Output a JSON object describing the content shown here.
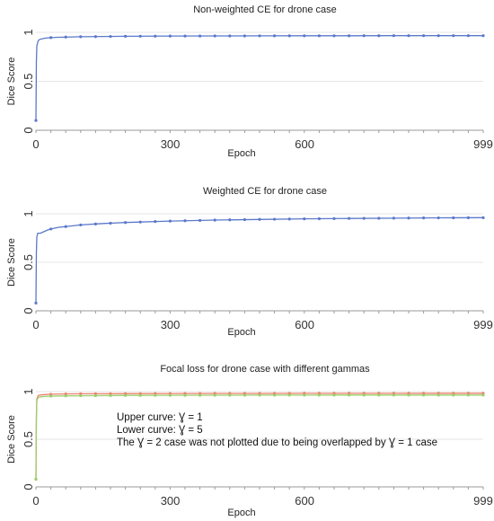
{
  "chart_data": [
    {
      "type": "line",
      "title": "Non-weighted CE for drone case",
      "xlabel": "Epoch",
      "ylabel": "Dice Score",
      "x_ticks": [
        "0",
        "300",
        "600",
        "999"
      ],
      "y_ticks": [
        "0",
        "0.5",
        "1"
      ],
      "xlim": [
        0,
        999
      ],
      "ylim": [
        0,
        1
      ],
      "grid": true,
      "colors": [
        "#5b78c9"
      ],
      "series": [
        {
          "x": [
            0,
            1,
            2,
            4,
            6,
            10,
            15,
            20,
            30,
            50,
            100,
            200,
            300,
            400,
            500,
            600,
            700,
            800,
            900,
            999
          ],
          "values": [
            0.1,
            0.7,
            0.86,
            0.9,
            0.92,
            0.93,
            0.935,
            0.94,
            0.945,
            0.95,
            0.955,
            0.96,
            0.962,
            0.963,
            0.964,
            0.965,
            0.965,
            0.966,
            0.966,
            0.966
          ]
        }
      ],
      "annotations": []
    },
    {
      "type": "line",
      "title": "Weighted CE for drone case",
      "xlabel": "Epoch",
      "ylabel": "Dice Score",
      "x_ticks": [
        "0",
        "300",
        "600",
        "999"
      ],
      "y_ticks": [
        "0",
        "0.5",
        "1"
      ],
      "xlim": [
        0,
        999
      ],
      "ylim": [
        0,
        1
      ],
      "grid": true,
      "colors": [
        "#5b78c9"
      ],
      "series": [
        {
          "x": [
            0,
            1,
            2,
            4,
            6,
            10,
            15,
            20,
            30,
            50,
            80,
            100,
            150,
            200,
            300,
            400,
            500,
            600,
            700,
            800,
            900,
            999
          ],
          "values": [
            0.08,
            0.6,
            0.76,
            0.8,
            0.8,
            0.8,
            0.81,
            0.82,
            0.84,
            0.86,
            0.875,
            0.885,
            0.9,
            0.91,
            0.925,
            0.935,
            0.942,
            0.948,
            0.952,
            0.955,
            0.958,
            0.96
          ]
        }
      ],
      "annotations": []
    },
    {
      "type": "line",
      "title": "Focal loss for drone case with different gammas",
      "xlabel": "Epoch",
      "ylabel": "Dice Score",
      "x_ticks": [
        "0",
        "300",
        "600",
        "999"
      ],
      "y_ticks": [
        "0",
        "0.5",
        "1"
      ],
      "xlim": [
        0,
        999
      ],
      "ylim": [
        0,
        1
      ],
      "grid": true,
      "colors": [
        "#e8806a",
        "#9ccf6e"
      ],
      "series": [
        {
          "x": [
            0,
            1,
            2,
            4,
            6,
            10,
            20,
            30,
            50,
            100,
            200,
            300,
            400,
            500,
            600,
            700,
            800,
            900,
            999
          ],
          "values": [
            0.08,
            0.75,
            0.92,
            0.95,
            0.96,
            0.965,
            0.97,
            0.972,
            0.975,
            0.977,
            0.979,
            0.98,
            0.981,
            0.981,
            0.982,
            0.982,
            0.982,
            0.983,
            0.983
          ]
        },
        {
          "x": [
            0,
            1,
            2,
            4,
            6,
            10,
            20,
            30,
            50,
            100,
            200,
            300,
            400,
            500,
            600,
            700,
            800,
            900,
            999
          ],
          "values": [
            0.08,
            0.7,
            0.9,
            0.93,
            0.94,
            0.945,
            0.95,
            0.952,
            0.955,
            0.957,
            0.96,
            0.961,
            0.962,
            0.963,
            0.963,
            0.964,
            0.964,
            0.964,
            0.964
          ]
        }
      ],
      "annotations": [
        "Upper curve: Ɣ = 1",
        "Lower curve: Ɣ = 5",
        "The Ɣ = 2 case was not plotted due to being overlapped by Ɣ = 1 case"
      ]
    }
  ]
}
